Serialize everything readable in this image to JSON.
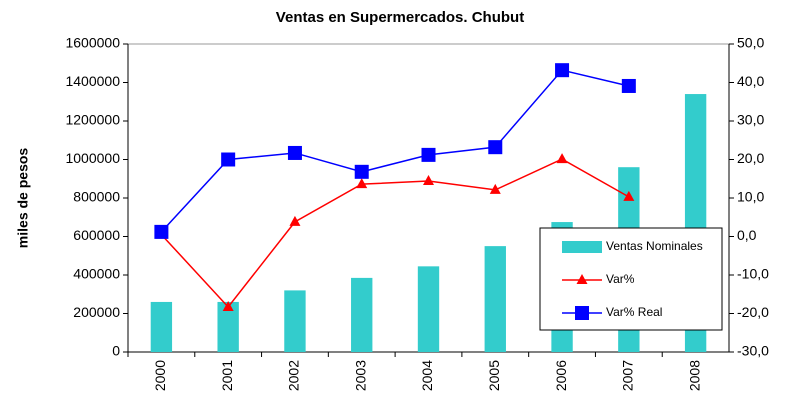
{
  "chart_data": {
    "type": "bar_line",
    "title": "Ventas en Supermercados. Chubut",
    "y_label": "miles de pesos",
    "categories": [
      "2000",
      "2001",
      "2002",
      "2003",
      "2004",
      "2005",
      "2006",
      "2007",
      "2008"
    ],
    "series": [
      {
        "name": "Ventas Nominales",
        "kind": "bar",
        "color": "#33cccc",
        "values": [
          260000,
          260000,
          320000,
          385000,
          445000,
          550000,
          675000,
          960000,
          1340000
        ]
      },
      {
        "name": "Var%",
        "kind": "line",
        "marker": "triangle",
        "axis": "y2",
        "color": "#ff0000",
        "values": [
          0.5,
          -18.3,
          3.8,
          13.6,
          14.4,
          12.1,
          20.1,
          10.3,
          null
        ]
      },
      {
        "name": "Var% Real",
        "kind": "line",
        "marker": "square",
        "axis": "y2",
        "color": "#0000ff",
        "values": [
          1.2,
          20,
          21.7,
          16.8,
          21.2,
          23.2,
          43.2,
          39.1,
          null
        ]
      }
    ],
    "ylim": [
      0,
      1600000
    ],
    "yticks": [
      0,
      200000,
      400000,
      600000,
      800000,
      1000000,
      1200000,
      1400000,
      1600000
    ],
    "y2lim": [
      -30,
      50
    ],
    "y2ticks": [
      {
        "value": -30,
        "label": "-30,0"
      },
      {
        "value": -20,
        "label": "-20,0"
      },
      {
        "value": -10,
        "label": "-10,0"
      },
      {
        "value": 0,
        "label": "0,0"
      },
      {
        "value": 10,
        "label": "10,0"
      },
      {
        "value": 20,
        "label": "20,0"
      },
      {
        "value": 30,
        "label": "30,0"
      },
      {
        "value": 40,
        "label": "40,0"
      },
      {
        "value": 50,
        "label": "50,0"
      }
    ]
  }
}
